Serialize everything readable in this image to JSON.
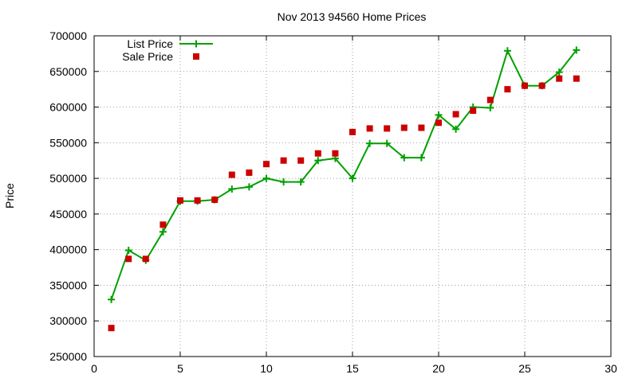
{
  "chart_data": {
    "type": "line",
    "title": "Nov 2013 94560 Home Prices",
    "xlabel": "",
    "ylabel": "Price",
    "xlim": [
      0,
      30
    ],
    "ylim": [
      250000,
      700000
    ],
    "x_ticks": [
      "0",
      "5",
      "10",
      "15",
      "20",
      "25",
      "30"
    ],
    "y_ticks": [
      "250000",
      "300000",
      "350000",
      "400000",
      "450000",
      "500000",
      "550000",
      "600000",
      "650000",
      "700000"
    ],
    "grid": true,
    "legend_position": "top-left",
    "series": [
      {
        "name": "List Price",
        "style": "line-plus",
        "color": "#00a000",
        "x": [
          1,
          2,
          3,
          4,
          5,
          6,
          7,
          8,
          9,
          10,
          11,
          12,
          13,
          14,
          15,
          16,
          17,
          18,
          19,
          20,
          21,
          22,
          23,
          24,
          25,
          26,
          27,
          28
        ],
        "y": [
          330000,
          399000,
          385000,
          425000,
          468000,
          468000,
          470000,
          485000,
          488000,
          500000,
          495000,
          495000,
          525000,
          528000,
          500000,
          549000,
          549000,
          529000,
          529000,
          589000,
          569000,
          600000,
          599000,
          679000,
          630000,
          630000,
          649000,
          680000
        ]
      },
      {
        "name": "Sale Price",
        "style": "points-square",
        "color": "#cc0000",
        "x": [
          1,
          2,
          3,
          4,
          5,
          6,
          7,
          8,
          9,
          10,
          11,
          12,
          13,
          14,
          15,
          16,
          17,
          18,
          19,
          20,
          21,
          22,
          23,
          24,
          25,
          26,
          27,
          28
        ],
        "y": [
          290000,
          387000,
          387000,
          435000,
          469000,
          469000,
          470000,
          505000,
          508000,
          520000,
          525000,
          525000,
          535000,
          535000,
          565000,
          570000,
          570000,
          571000,
          571000,
          578000,
          590000,
          595000,
          610000,
          625000,
          630000,
          630000,
          640000,
          640000
        ]
      }
    ]
  }
}
